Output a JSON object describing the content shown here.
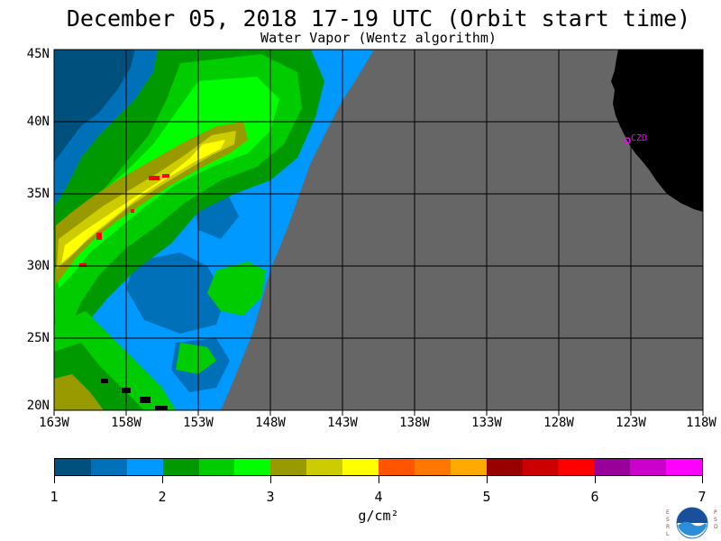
{
  "title": "December 05, 2018  17-19 UTC  (Orbit start time)",
  "subtitle": "Water Vapor (Wentz algorithm)",
  "map": {
    "lat_labels": [
      "45N",
      "40N",
      "35N",
      "30N",
      "25N",
      "20N"
    ],
    "lon_labels": [
      "163W",
      "158W",
      "153W",
      "148W",
      "143W",
      "138W",
      "133W",
      "128W",
      "123W",
      "118W"
    ],
    "station_label": "CZD",
    "colors": {
      "no_data": "#666666",
      "land": "#000000",
      "station": "#ff00ff",
      "grid": "#000000"
    }
  },
  "legend": {
    "colors": [
      "#00507d",
      "#0070b8",
      "#0099ff",
      "#009900",
      "#00cc00",
      "#00ff00",
      "#999900",
      "#cccc00",
      "#ffff00",
      "#ff5500",
      "#ff7700",
      "#ffaa00",
      "#990000",
      "#cc0000",
      "#ff0000",
      "#990099",
      "#cc00cc",
      "#ff00ff"
    ],
    "labels": [
      "1",
      "2",
      "3",
      "4",
      "5",
      "6",
      "7"
    ],
    "units": "g/cm²"
  },
  "logo": {
    "name": "NOAA",
    "left_text": "ESRL",
    "right_text": "PSD"
  }
}
